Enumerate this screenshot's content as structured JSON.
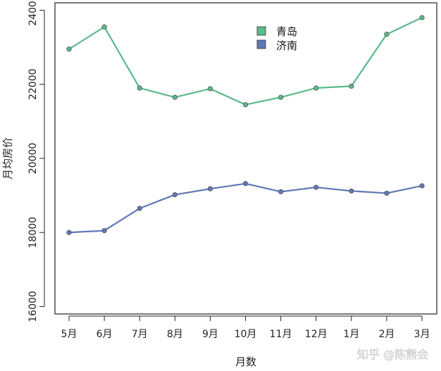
{
  "chart_data": {
    "type": "line",
    "xlabel": "月数",
    "ylabel": "月均房价",
    "categories": [
      "5月",
      "6月",
      "7月",
      "8月",
      "9月",
      "10月",
      "11月",
      "12月",
      "1月",
      "2月",
      "3月"
    ],
    "ylim": [
      15800,
      24200
    ],
    "yticks": [
      16000,
      18000,
      20000,
      22000,
      24000
    ],
    "grid": false,
    "legend_position": "top-center",
    "series": [
      {
        "name": "青岛",
        "color": "#5cb98a",
        "values": [
          22950,
          23550,
          21900,
          21650,
          21880,
          21450,
          21650,
          21900,
          21950,
          23350,
          23800
        ]
      },
      {
        "name": "济南",
        "color": "#6178b5",
        "values": [
          18000,
          18050,
          18650,
          19020,
          19180,
          19320,
          19100,
          19220,
          19120,
          19060,
          19260
        ]
      }
    ]
  },
  "watermark": "知乎 @陈熊会"
}
